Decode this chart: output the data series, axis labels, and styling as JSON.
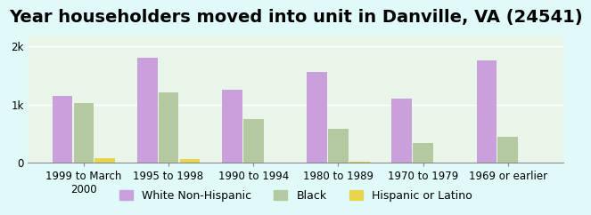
{
  "title": "Year householders moved into unit in Danville, VA (24541)",
  "categories": [
    "1999 to March\n2000",
    "1995 to 1998",
    "1990 to 1994",
    "1980 to 1989",
    "1970 to 1979",
    "1969 or earlier"
  ],
  "series": {
    "White Non-Hispanic": [
      1150,
      1800,
      1250,
      1550,
      1100,
      1750
    ],
    "Black": [
      1020,
      1200,
      750,
      580,
      340,
      450
    ],
    "Hispanic or Latino": [
      80,
      60,
      8,
      15,
      10,
      10
    ]
  },
  "bar_colors": {
    "White Non-Hispanic": "#c9a0dc",
    "Black": "#b5c9a0",
    "Hispanic or Latino": "#e8d44d"
  },
  "ylim": [
    0,
    2200
  ],
  "yticks": [
    0,
    1000,
    2000
  ],
  "ytick_labels": [
    "0",
    "1k",
    "2k"
  ],
  "background_color": "#e0fafa",
  "plot_bg_gradient_top": "#e8f5e8",
  "plot_bg_gradient_bottom": "#f0faf0",
  "bar_width": 0.25,
  "legend_items": [
    "White Non-Hispanic",
    "Black",
    "Hispanic or Latino"
  ],
  "title_fontsize": 14,
  "tick_fontsize": 8.5,
  "legend_fontsize": 9
}
